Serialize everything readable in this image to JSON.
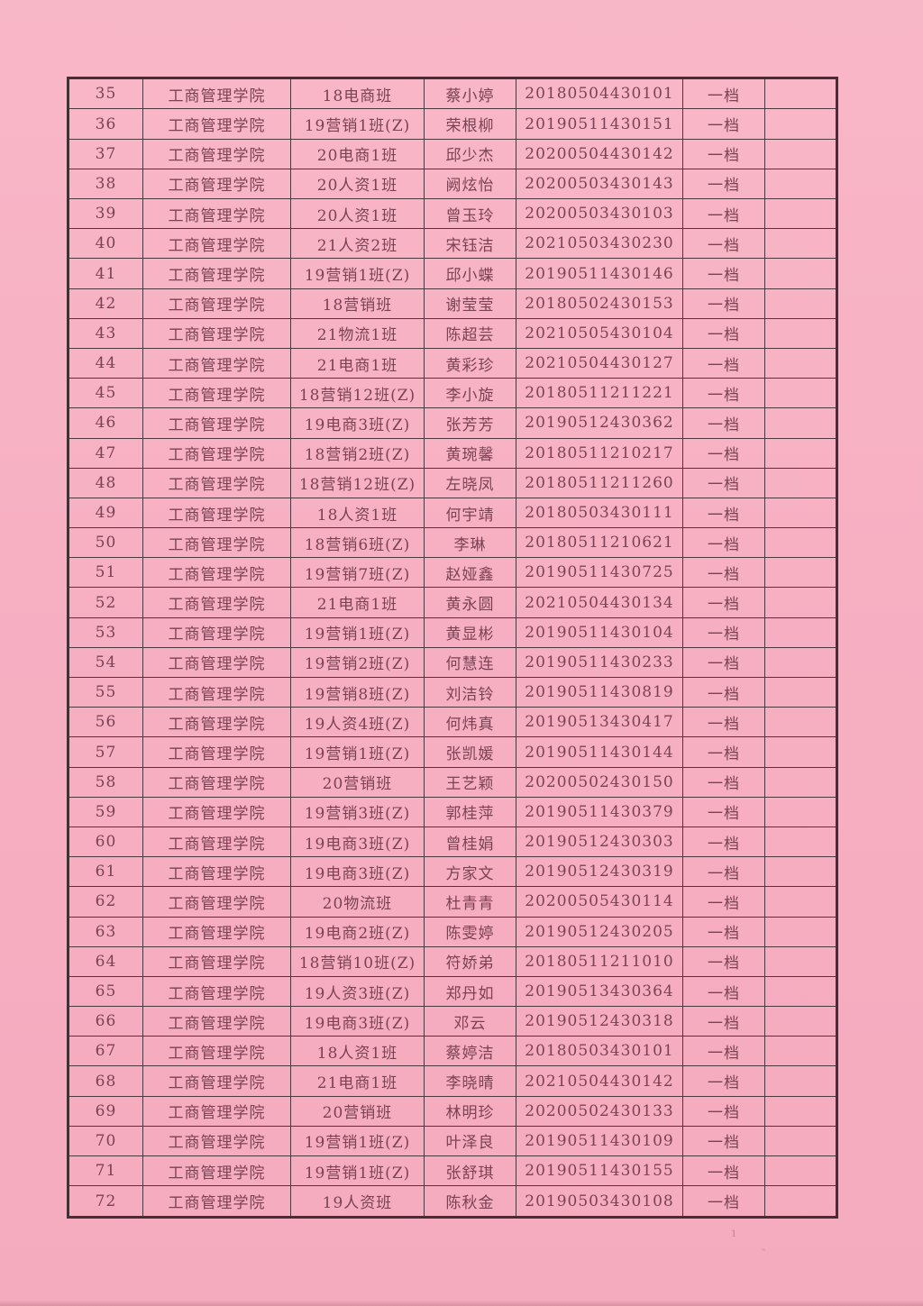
{
  "page": {
    "background_color": "#f6aec1",
    "border_color": "#4e3840",
    "text_color": "#7b4254"
  },
  "artifacts": {
    "speck_text": "1"
  },
  "table": {
    "rows": [
      {
        "no": "35",
        "college": "工商管理学院",
        "class_name": "18电商班",
        "name": "蔡小婷",
        "student_id": "20180504430101",
        "grade": "一档",
        "remark": ""
      },
      {
        "no": "36",
        "college": "工商管理学院",
        "class_name": "19营销1班(Z)",
        "name": "荣根柳",
        "student_id": "20190511430151",
        "grade": "一档",
        "remark": ""
      },
      {
        "no": "37",
        "college": "工商管理学院",
        "class_name": "20电商1班",
        "name": "邱少杰",
        "student_id": "20200504430142",
        "grade": "一档",
        "remark": ""
      },
      {
        "no": "38",
        "college": "工商管理学院",
        "class_name": "20人资1班",
        "name": "阙炫怡",
        "student_id": "20200503430143",
        "grade": "一档",
        "remark": ""
      },
      {
        "no": "39",
        "college": "工商管理学院",
        "class_name": "20人资1班",
        "name": "曾玉玲",
        "student_id": "20200503430103",
        "grade": "一档",
        "remark": ""
      },
      {
        "no": "40",
        "college": "工商管理学院",
        "class_name": "21人资2班",
        "name": "宋钰洁",
        "student_id": "20210503430230",
        "grade": "一档",
        "remark": ""
      },
      {
        "no": "41",
        "college": "工商管理学院",
        "class_name": "19营销1班(Z)",
        "name": "邱小蝶",
        "student_id": "20190511430146",
        "grade": "一档",
        "remark": ""
      },
      {
        "no": "42",
        "college": "工商管理学院",
        "class_name": "18营销班",
        "name": "谢莹莹",
        "student_id": "20180502430153",
        "grade": "一档",
        "remark": ""
      },
      {
        "no": "43",
        "college": "工商管理学院",
        "class_name": "21物流1班",
        "name": "陈超芸",
        "student_id": "20210505430104",
        "grade": "一档",
        "remark": ""
      },
      {
        "no": "44",
        "college": "工商管理学院",
        "class_name": "21电商1班",
        "name": "黄彩珍",
        "student_id": "20210504430127",
        "grade": "一档",
        "remark": ""
      },
      {
        "no": "45",
        "college": "工商管理学院",
        "class_name": "18营销12班(Z)",
        "name": "李小旋",
        "student_id": "20180511211221",
        "grade": "一档",
        "remark": ""
      },
      {
        "no": "46",
        "college": "工商管理学院",
        "class_name": "19电商3班(Z)",
        "name": "张芳芳",
        "student_id": "20190512430362",
        "grade": "一档",
        "remark": ""
      },
      {
        "no": "47",
        "college": "工商管理学院",
        "class_name": "18营销2班(Z)",
        "name": "黄琬馨",
        "student_id": "20180511210217",
        "grade": "一档",
        "remark": ""
      },
      {
        "no": "48",
        "college": "工商管理学院",
        "class_name": "18营销12班(Z)",
        "name": "左晓凤",
        "student_id": "20180511211260",
        "grade": "一档",
        "remark": ""
      },
      {
        "no": "49",
        "college": "工商管理学院",
        "class_name": "18人资1班",
        "name": "何宇靖",
        "student_id": "20180503430111",
        "grade": "一档",
        "remark": ""
      },
      {
        "no": "50",
        "college": "工商管理学院",
        "class_name": "18营销6班(Z)",
        "name": "李琳",
        "student_id": "20180511210621",
        "grade": "一档",
        "remark": ""
      },
      {
        "no": "51",
        "college": "工商管理学院",
        "class_name": "19营销7班(Z)",
        "name": "赵娅鑫",
        "student_id": "20190511430725",
        "grade": "一档",
        "remark": ""
      },
      {
        "no": "52",
        "college": "工商管理学院",
        "class_name": "21电商1班",
        "name": "黄永圆",
        "student_id": "20210504430134",
        "grade": "一档",
        "remark": ""
      },
      {
        "no": "53",
        "college": "工商管理学院",
        "class_name": "19营销1班(Z)",
        "name": "黄显彬",
        "student_id": "20190511430104",
        "grade": "一档",
        "remark": ""
      },
      {
        "no": "54",
        "college": "工商管理学院",
        "class_name": "19营销2班(Z)",
        "name": "何慧连",
        "student_id": "20190511430233",
        "grade": "一档",
        "remark": ""
      },
      {
        "no": "55",
        "college": "工商管理学院",
        "class_name": "19营销8班(Z)",
        "name": "刘洁铃",
        "student_id": "20190511430819",
        "grade": "一档",
        "remark": ""
      },
      {
        "no": "56",
        "college": "工商管理学院",
        "class_name": "19人资4班(Z)",
        "name": "何炜真",
        "student_id": "20190513430417",
        "grade": "一档",
        "remark": ""
      },
      {
        "no": "57",
        "college": "工商管理学院",
        "class_name": "19营销1班(Z)",
        "name": "张凯媛",
        "student_id": "20190511430144",
        "grade": "一档",
        "remark": ""
      },
      {
        "no": "58",
        "college": "工商管理学院",
        "class_name": "20营销班",
        "name": "王艺颖",
        "student_id": "20200502430150",
        "grade": "一档",
        "remark": ""
      },
      {
        "no": "59",
        "college": "工商管理学院",
        "class_name": "19营销3班(Z)",
        "name": "郭桂萍",
        "student_id": "20190511430379",
        "grade": "一档",
        "remark": ""
      },
      {
        "no": "60",
        "college": "工商管理学院",
        "class_name": "19电商3班(Z)",
        "name": "曾桂娟",
        "student_id": "20190512430303",
        "grade": "一档",
        "remark": ""
      },
      {
        "no": "61",
        "college": "工商管理学院",
        "class_name": "19电商3班(Z)",
        "name": "方家文",
        "student_id": "20190512430319",
        "grade": "一档",
        "remark": ""
      },
      {
        "no": "62",
        "college": "工商管理学院",
        "class_name": "20物流班",
        "name": "杜青青",
        "student_id": "20200505430114",
        "grade": "一档",
        "remark": ""
      },
      {
        "no": "63",
        "college": "工商管理学院",
        "class_name": "19电商2班(Z)",
        "name": "陈雯婷",
        "student_id": "20190512430205",
        "grade": "一档",
        "remark": ""
      },
      {
        "no": "64",
        "college": "工商管理学院",
        "class_name": "18营销10班(Z)",
        "name": "符娇弟",
        "student_id": "20180511211010",
        "grade": "一档",
        "remark": ""
      },
      {
        "no": "65",
        "college": "工商管理学院",
        "class_name": "19人资3班(Z)",
        "name": "郑丹如",
        "student_id": "20190513430364",
        "grade": "一档",
        "remark": ""
      },
      {
        "no": "66",
        "college": "工商管理学院",
        "class_name": "19电商3班(Z)",
        "name": "邓云",
        "student_id": "20190512430318",
        "grade": "一档",
        "remark": ""
      },
      {
        "no": "67",
        "college": "工商管理学院",
        "class_name": "18人资1班",
        "name": "蔡婷洁",
        "student_id": "20180503430101",
        "grade": "一档",
        "remark": ""
      },
      {
        "no": "68",
        "college": "工商管理学院",
        "class_name": "21电商1班",
        "name": "李晓晴",
        "student_id": "20210504430142",
        "grade": "一档",
        "remark": ""
      },
      {
        "no": "69",
        "college": "工商管理学院",
        "class_name": "20营销班",
        "name": "林明珍",
        "student_id": "20200502430133",
        "grade": "一档",
        "remark": ""
      },
      {
        "no": "70",
        "college": "工商管理学院",
        "class_name": "19营销1班(Z)",
        "name": "叶泽良",
        "student_id": "20190511430109",
        "grade": "一档",
        "remark": ""
      },
      {
        "no": "71",
        "college": "工商管理学院",
        "class_name": "19营销1班(Z)",
        "name": "张舒琪",
        "student_id": "20190511430155",
        "grade": "一档",
        "remark": ""
      },
      {
        "no": "72",
        "college": "工商管理学院",
        "class_name": "19人资班",
        "name": "陈秋金",
        "student_id": "20190503430108",
        "grade": "一档",
        "remark": ""
      }
    ]
  }
}
